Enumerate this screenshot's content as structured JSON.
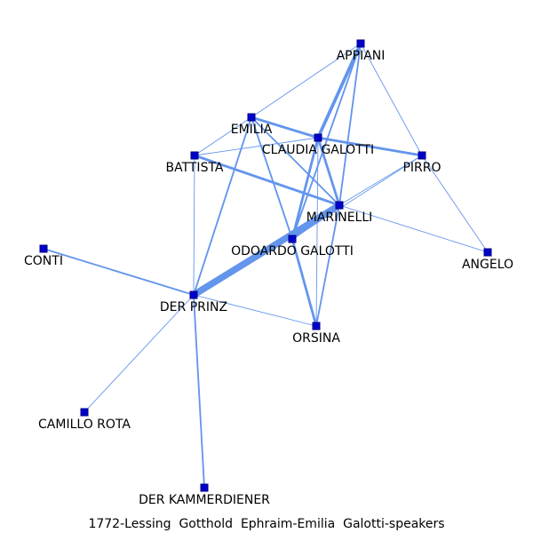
{
  "caption": "1772-Lessing  Gotthold  Ephraim-Emilia  Galotti-speakers",
  "colors": {
    "edge": "#6495ed",
    "node_fill": "#0000cd",
    "node_stroke": "#000080",
    "label": "#000000"
  },
  "nodes": [
    {
      "id": "appiani",
      "label": "APPIANI"
    },
    {
      "id": "emilia",
      "label": "EMILIA"
    },
    {
      "id": "claudia",
      "label": "CLAUDIA GALOTTI"
    },
    {
      "id": "battista",
      "label": "BATTISTA"
    },
    {
      "id": "pirro",
      "label": "PIRRO"
    },
    {
      "id": "marinelli",
      "label": "MARINELLI"
    },
    {
      "id": "odoardo",
      "label": "ODOARDO GALOTTI"
    },
    {
      "id": "conti",
      "label": "CONTI"
    },
    {
      "id": "angelo",
      "label": "ANGELO"
    },
    {
      "id": "prinz",
      "label": "DER PRINZ"
    },
    {
      "id": "orsina",
      "label": "ORSINA"
    },
    {
      "id": "camillo",
      "label": "CAMILLO ROTA"
    },
    {
      "id": "kammerdiener",
      "label": "DER KAMMERDIENER"
    }
  ],
  "edges": [
    {
      "source": "appiani",
      "target": "emilia",
      "weight": 1
    },
    {
      "source": "appiani",
      "target": "claudia",
      "weight": 4
    },
    {
      "source": "appiani",
      "target": "marinelli",
      "weight": 2
    },
    {
      "source": "appiani",
      "target": "odoardo",
      "weight": 2
    },
    {
      "source": "appiani",
      "target": "pirro",
      "weight": 1
    },
    {
      "source": "emilia",
      "target": "claudia",
      "weight": 3
    },
    {
      "source": "emilia",
      "target": "battista",
      "weight": 1
    },
    {
      "source": "emilia",
      "target": "marinelli",
      "weight": 2
    },
    {
      "source": "emilia",
      "target": "odoardo",
      "weight": 2
    },
    {
      "source": "emilia",
      "target": "prinz",
      "weight": 2
    },
    {
      "source": "claudia",
      "target": "battista",
      "weight": 1
    },
    {
      "source": "claudia",
      "target": "pirro",
      "weight": 3
    },
    {
      "source": "claudia",
      "target": "marinelli",
      "weight": 3
    },
    {
      "source": "claudia",
      "target": "odoardo",
      "weight": 3
    },
    {
      "source": "claudia",
      "target": "orsina",
      "weight": 1
    },
    {
      "source": "battista",
      "target": "marinelli",
      "weight": 3
    },
    {
      "source": "battista",
      "target": "prinz",
      "weight": 1
    },
    {
      "source": "pirro",
      "target": "marinelli",
      "weight": 1
    },
    {
      "source": "pirro",
      "target": "angelo",
      "weight": 1
    },
    {
      "source": "pirro",
      "target": "odoardo",
      "weight": 1
    },
    {
      "source": "marinelli",
      "target": "prinz",
      "weight": 8
    },
    {
      "source": "marinelli",
      "target": "odoardo",
      "weight": 3
    },
    {
      "source": "marinelli",
      "target": "orsina",
      "weight": 2
    },
    {
      "source": "marinelli",
      "target": "angelo",
      "weight": 1
    },
    {
      "source": "odoardo",
      "target": "orsina",
      "weight": 3
    },
    {
      "source": "prinz",
      "target": "conti",
      "weight": 2
    },
    {
      "source": "prinz",
      "target": "orsina",
      "weight": 1
    },
    {
      "source": "prinz",
      "target": "camillo",
      "weight": 1
    },
    {
      "source": "prinz",
      "target": "kammerdiener",
      "weight": 2
    }
  ]
}
